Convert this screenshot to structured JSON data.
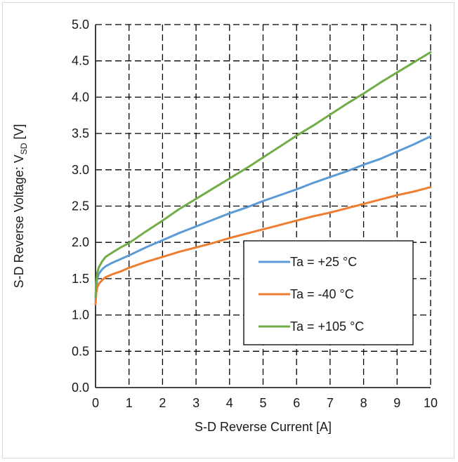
{
  "chart_data": {
    "type": "line",
    "xlabel": "S-D Reverse Current [A]",
    "ylabel": {
      "prefix": "S-D Reverse Voltage: V",
      "subscript": "SD",
      "suffix": " [V]"
    },
    "xlim": [
      0,
      10
    ],
    "ylim": [
      0,
      5
    ],
    "xticks": [
      "0",
      "1",
      "2",
      "3",
      "4",
      "5",
      "6",
      "7",
      "8",
      "9",
      "10"
    ],
    "yticks": [
      "0.0",
      "0.5",
      "1.0",
      "1.5",
      "2.0",
      "2.5",
      "3.0",
      "3.5",
      "4.0",
      "4.5",
      "5.0"
    ],
    "grid": true,
    "legend_position": "center-right",
    "series": [
      {
        "name": "Ta = +25 °C",
        "color": "#5b9bd5",
        "x": [
          0,
          0.02,
          0.05,
          0.1,
          0.2,
          0.3,
          0.5,
          0.75,
          1,
          1.5,
          2,
          2.5,
          3,
          3.5,
          4,
          4.5,
          5,
          5.5,
          6,
          6.5,
          7,
          7.5,
          8,
          8.5,
          9,
          9.5,
          10
        ],
        "y": [
          1.2,
          1.38,
          1.5,
          1.57,
          1.63,
          1.67,
          1.72,
          1.77,
          1.82,
          1.93,
          2.03,
          2.13,
          2.22,
          2.31,
          2.4,
          2.48,
          2.57,
          2.65,
          2.73,
          2.82,
          2.9,
          2.98,
          3.07,
          3.15,
          3.25,
          3.35,
          3.46
        ]
      },
      {
        "name": "Ta = -40 °C",
        "color": "#ed7d31",
        "x": [
          0,
          0.02,
          0.05,
          0.1,
          0.2,
          0.3,
          0.5,
          0.75,
          1,
          1.5,
          2,
          2.5,
          3,
          3.5,
          4,
          4.5,
          5,
          5.5,
          6,
          6.5,
          7,
          7.5,
          8,
          8.5,
          9,
          9.5,
          10
        ],
        "y": [
          1.15,
          1.3,
          1.38,
          1.43,
          1.48,
          1.52,
          1.56,
          1.6,
          1.65,
          1.73,
          1.8,
          1.87,
          1.93,
          1.99,
          2.06,
          2.12,
          2.18,
          2.24,
          2.3,
          2.36,
          2.41,
          2.47,
          2.53,
          2.59,
          2.65,
          2.7,
          2.76
        ]
      },
      {
        "name": "Ta = +105 °C",
        "color": "#70ad47",
        "x": [
          0,
          0.02,
          0.05,
          0.1,
          0.2,
          0.3,
          0.5,
          0.75,
          1,
          1.5,
          2,
          2.5,
          3,
          3.5,
          4,
          4.5,
          5,
          5.5,
          6,
          6.5,
          7,
          7.5,
          8,
          8.5,
          9,
          9.5,
          10
        ],
        "y": [
          1.25,
          1.45,
          1.58,
          1.66,
          1.74,
          1.8,
          1.86,
          1.93,
          1.99,
          2.15,
          2.3,
          2.46,
          2.6,
          2.74,
          2.88,
          3.02,
          3.17,
          3.32,
          3.47,
          3.61,
          3.76,
          3.91,
          4.05,
          4.2,
          4.34,
          4.48,
          4.62
        ]
      }
    ]
  }
}
